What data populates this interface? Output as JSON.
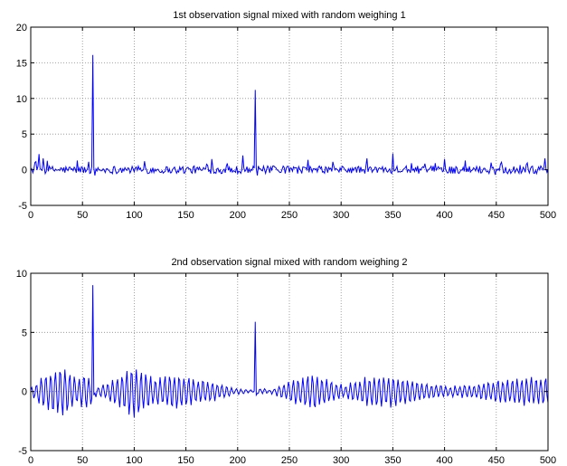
{
  "chart_data": [
    {
      "type": "line",
      "title": "1st observation signal mixed with random weighing 1",
      "xlim": [
        0,
        500
      ],
      "ylim": [
        -5,
        20
      ],
      "xticks": [
        0,
        50,
        100,
        150,
        200,
        250,
        300,
        350,
        400,
        450,
        500
      ],
      "yticks": [
        -5,
        0,
        5,
        10,
        15,
        20
      ],
      "grid": true,
      "series": [
        {
          "color": "#0000ff",
          "spikes": [
            [
              60,
              16.1
            ],
            [
              217,
              11.2
            ]
          ],
          "bumps": [
            [
              8,
              2.2
            ],
            [
              12,
              1.6
            ],
            [
              45,
              1.3
            ],
            [
              110,
              1.2
            ],
            [
              175,
              1.5
            ],
            [
              205,
              2.0
            ],
            [
              325,
              1.6
            ],
            [
              350,
              2.3
            ],
            [
              400,
              1.5
            ],
            [
              420,
              1.3
            ],
            [
              445,
              1.0
            ],
            [
              497,
              1.6
            ]
          ],
          "noise_amplitude": 0.6,
          "n": 500
        }
      ]
    },
    {
      "type": "line",
      "title": "2nd observation signal mixed with random weighing 2",
      "xlim": [
        0,
        500
      ],
      "ylim": [
        -5,
        10
      ],
      "xticks": [
        0,
        50,
        100,
        150,
        200,
        250,
        300,
        350,
        400,
        450,
        500
      ],
      "yticks": [
        -5,
        0,
        5,
        10
      ],
      "grid": true,
      "series": [
        {
          "color": "#0000ff",
          "spikes": [
            [
              60,
              9.0
            ],
            [
              217,
              5.9
            ]
          ],
          "oscillation_period": 4.6,
          "envelope": [
            [
              0,
              0.3
            ],
            [
              15,
              1.5
            ],
            [
              30,
              2.0
            ],
            [
              45,
              1.0
            ],
            [
              55,
              1.4
            ],
            [
              65,
              0.3
            ],
            [
              80,
              1.0
            ],
            [
              100,
              2.0
            ],
            [
              120,
              1.0
            ],
            [
              140,
              1.4
            ],
            [
              160,
              1.0
            ],
            [
              180,
              0.7
            ],
            [
              195,
              0.3
            ],
            [
              215,
              0.1
            ],
            [
              235,
              0.2
            ],
            [
              255,
              1.0
            ],
            [
              275,
              1.4
            ],
            [
              290,
              0.8
            ],
            [
              305,
              0.5
            ],
            [
              325,
              1.1
            ],
            [
              345,
              1.3
            ],
            [
              365,
              1.0
            ],
            [
              385,
              0.6
            ],
            [
              405,
              0.4
            ],
            [
              425,
              0.5
            ],
            [
              445,
              0.8
            ],
            [
              470,
              1.1
            ],
            [
              500,
              1.1
            ]
          ],
          "n": 500
        }
      ]
    }
  ]
}
